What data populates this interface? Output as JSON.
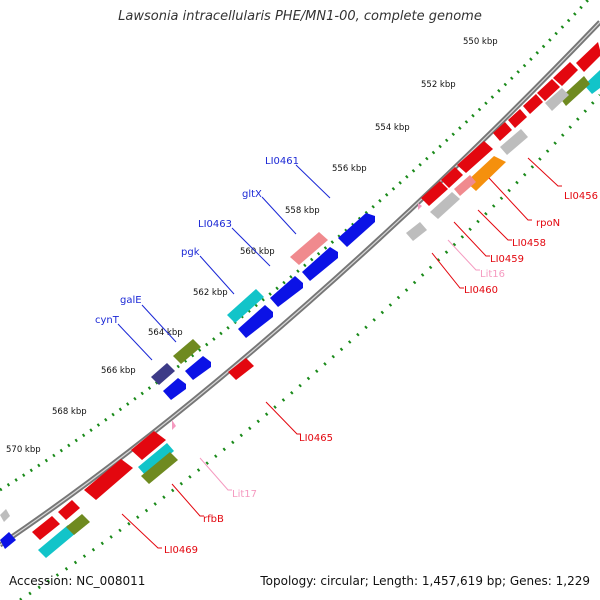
{
  "title": "Lawsonia intracellularis PHE/MN1-00, complete genome",
  "accession": "Accession: NC_008011",
  "stats": "Topology: circular; Length: 1,457,619 bp; Genes: 1,229",
  "scale_labels": [
    "550 kbp",
    "552 kbp",
    "554 kbp",
    "556 kbp",
    "558 kbp",
    "560 kbp",
    "562 kbp",
    "564 kbp",
    "566 kbp",
    "568 kbp",
    "570 kbp"
  ],
  "gene_labels": {
    "LI0461": "LI0461",
    "gltX": "gltX",
    "LI0463": "LI0463",
    "pgk": "pgk",
    "galE": "galE",
    "cynT": "cynT",
    "LI0456": "LI0456",
    "rpoN": "rpoN",
    "LI0458": "LI0458",
    "LI0459": "LI0459",
    "Lit16": "Lit16",
    "LI0460": "LI0460",
    "LI0465": "LI0465",
    "Lit17": "Lit17",
    "rfbB": "rfbB",
    "LI0469": "LI0469"
  },
  "colors": {
    "backbone": "#8a8a8a",
    "ticks": "#1a8a1a",
    "blue": "#0b12e6",
    "red": "#e3070f",
    "pink": "#f08a8e",
    "cyan": "#12c4c9",
    "olive": "#6f8a20",
    "gray": "#bdbdbd",
    "orange": "#f5900d",
    "navy": "#3d3b87",
    "light_pink": "#f59ac0"
  }
}
